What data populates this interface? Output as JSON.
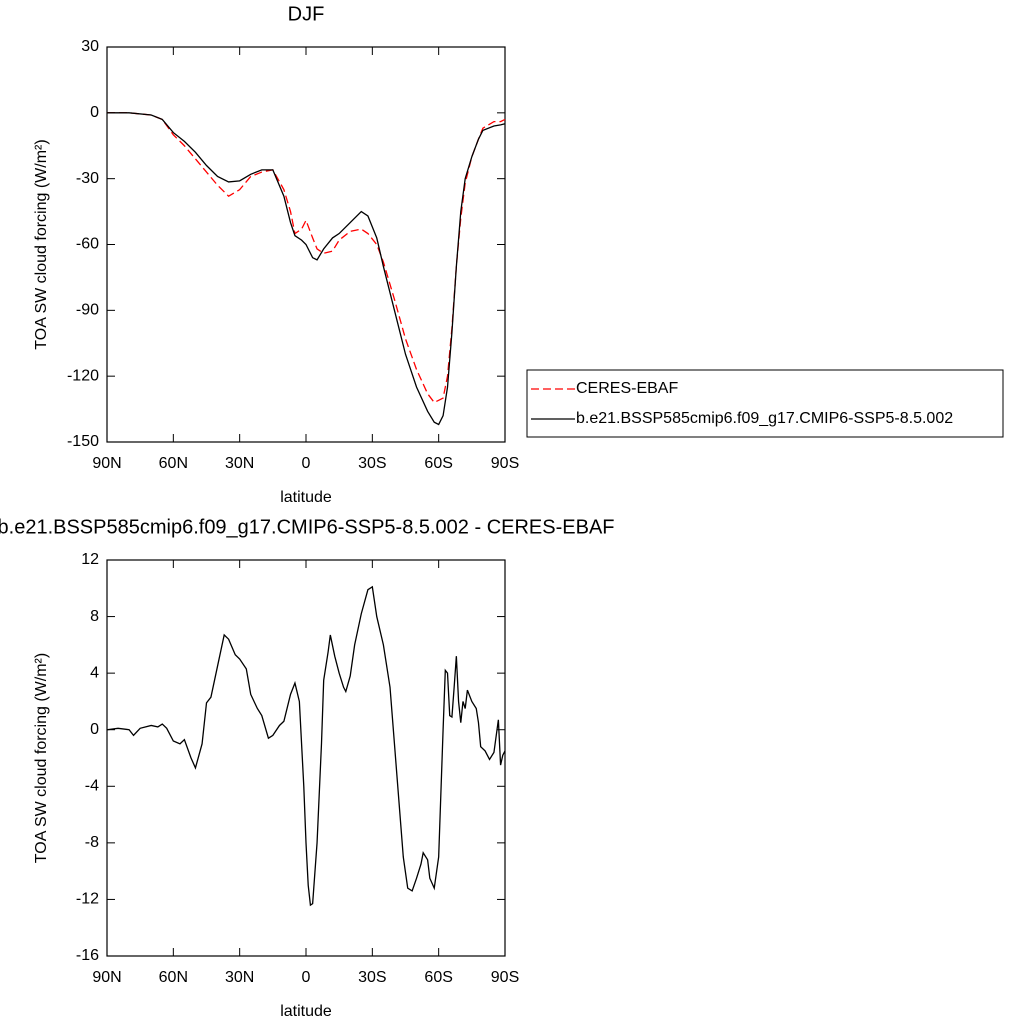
{
  "chart_data": [
    {
      "type": "line",
      "title": "DJF",
      "x_label": "latitude",
      "y_label": "TOA SW cloud forcing (W/m²)",
      "xlim": [
        90,
        -90
      ],
      "ylim": [
        30,
        -150
      ],
      "xticks": [
        {
          "value": 90,
          "label": "90N"
        },
        {
          "value": 60,
          "label": "60N"
        },
        {
          "value": 30,
          "label": "30N"
        },
        0,
        {
          "value": -30,
          "label": "30S"
        },
        {
          "value": -60,
          "label": "60S"
        },
        {
          "value": -90,
          "label": "90S"
        }
      ],
      "yticks": [
        30,
        0,
        -30,
        -60,
        -90,
        -120,
        -150
      ],
      "legend": "right",
      "x": [
        90,
        80,
        70,
        65,
        60,
        55,
        50,
        45,
        40,
        35,
        30,
        25,
        20,
        15,
        10,
        7,
        5,
        2,
        0,
        -3,
        -5,
        -8,
        -12,
        -15,
        -20,
        -25,
        -28,
        -32,
        -35,
        -40,
        -45,
        -50,
        -55,
        -58,
        -60,
        -62,
        -64,
        -66,
        -68,
        -70,
        -72,
        -75,
        -78,
        -80,
        -85,
        -88,
        -90
      ],
      "series": [
        {
          "name": "CERES-EBAF",
          "color": "#ff0000",
          "style": "dashed",
          "values": [
            0,
            0,
            -1,
            -3,
            -10,
            -15,
            -21,
            -27,
            -33,
            -38,
            -35,
            -29,
            -27,
            -26,
            -35,
            -45,
            -55,
            -53,
            -49,
            -57,
            -62,
            -64,
            -63,
            -58,
            -54,
            -53,
            -55,
            -60,
            -68,
            -85,
            -103,
            -117,
            -128,
            -132,
            -131,
            -130,
            -120,
            -98,
            -70,
            -48,
            -32,
            -20,
            -12,
            -7,
            -4,
            -4,
            -3
          ]
        },
        {
          "name": "b.e21.BSSP585cmip6.f09_g17.CMIP6-SSP5-8.5.002",
          "color": "#000000",
          "style": "solid",
          "values": [
            0,
            0,
            -1,
            -3,
            -9,
            -13,
            -18,
            -24,
            -29,
            -31.5,
            -31,
            -28,
            -26,
            -26,
            -38,
            -50,
            -56,
            -58,
            -60,
            -66,
            -67,
            -62,
            -57,
            -55,
            -50,
            -45,
            -47,
            -57,
            -70,
            -90,
            -110,
            -125,
            -136,
            -141,
            -142,
            -138,
            -125,
            -100,
            -70,
            -45,
            -30,
            -20,
            -12,
            -8,
            -6,
            -5.5,
            -5
          ]
        }
      ]
    },
    {
      "type": "line",
      "title": "b.e21.BSSP585cmip6.f09_g17.CMIP6-SSP5-8.5.002 - CERES-EBAF",
      "x_label": "latitude",
      "y_label": "TOA SW cloud forcing (W/m²)",
      "xlim": [
        90,
        -90
      ],
      "ylim": [
        12,
        -16
      ],
      "xticks": [
        {
          "value": 90,
          "label": "90N"
        },
        {
          "value": 60,
          "label": "60N"
        },
        {
          "value": 30,
          "label": "30N"
        },
        0,
        {
          "value": -30,
          "label": "30S"
        },
        {
          "value": -60,
          "label": "60S"
        },
        {
          "value": -90,
          "label": "90S"
        }
      ],
      "yticks": [
        12,
        8,
        4,
        0,
        -4,
        -8,
        -12,
        -16
      ],
      "color": "#000000",
      "x": [
        90,
        85,
        80,
        78,
        75,
        70,
        67,
        65,
        63,
        60,
        57,
        55,
        52,
        50,
        47,
        45,
        43,
        40,
        37,
        35,
        32,
        30,
        27,
        25,
        22,
        20,
        17,
        15,
        12,
        10,
        7,
        5,
        3,
        1,
        0,
        -1,
        -2,
        -3,
        -5,
        -7,
        -8,
        -10,
        -11,
        -13,
        -15,
        -17,
        -18,
        -20,
        -22,
        -25,
        -28,
        -30,
        -32,
        -35,
        -38,
        -40,
        -42,
        -44,
        -46,
        -48,
        -50,
        -52,
        -53,
        -55,
        -56,
        -58,
        -60,
        -62,
        -63,
        -64,
        -65,
        -66,
        -67,
        -68,
        -69,
        -70,
        -71,
        -72,
        -73,
        -75,
        -77,
        -78,
        -79,
        -81,
        -83,
        -85,
        -87,
        -88,
        -89,
        -90
      ],
      "values": [
        0,
        0.1,
        0,
        -0.4,
        0.1,
        0.3,
        0.2,
        0.4,
        0.1,
        -0.8,
        -1,
        -0.7,
        -2,
        -2.7,
        -1,
        1.9,
        2.3,
        4.5,
        6.7,
        6.4,
        5.3,
        5,
        4.3,
        2.5,
        1.5,
        1,
        -0.6,
        -0.4,
        0.3,
        0.6,
        2.5,
        3.3,
        2,
        -4,
        -8,
        -11,
        -12.4,
        -12.3,
        -8,
        -1,
        3.5,
        5.5,
        6.7,
        5.2,
        4,
        3,
        2.7,
        3.8,
        6,
        8.2,
        9.9,
        10.1,
        8,
        6,
        3,
        -1,
        -5,
        -9,
        -11.2,
        -11.4,
        -10.5,
        -9.5,
        -8.7,
        -9.2,
        -10.5,
        -11.2,
        -9,
        0,
        4.2,
        4,
        1,
        0.9,
        3,
        5.2,
        2,
        0.5,
        2,
        1.5,
        2.8,
        2,
        1.5,
        0.5,
        -1.2,
        -1.5,
        -2.1,
        -1.6,
        0.7,
        -2.5,
        -1.8,
        -1.5
      ]
    }
  ]
}
